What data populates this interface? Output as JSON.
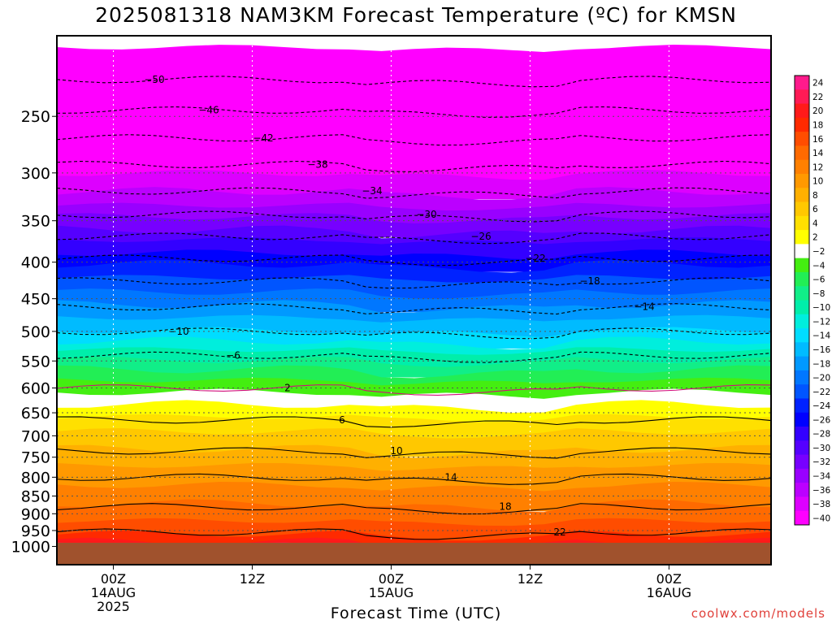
{
  "chart_data": {
    "type": "heatmap",
    "title": "2025081318 NAM3KM Forecast Temperature (ºC) for KMSN",
    "xlabel": "Forecast Time (UTC)",
    "ylabel": "",
    "y_levels": [
      250,
      300,
      350,
      400,
      450,
      500,
      550,
      600,
      650,
      700,
      750,
      800,
      850,
      900,
      950,
      1000
    ],
    "y_scale": "log",
    "ylim": [
      1000,
      200
    ],
    "x_ticks": [
      {
        "hour": 0,
        "lines": [
          "00Z",
          "14AUG",
          "2025"
        ]
      },
      {
        "hour": 12,
        "lines": [
          "12Z"
        ]
      },
      {
        "hour": 24,
        "lines": [
          "00Z",
          "15AUG"
        ]
      },
      {
        "hour": 36,
        "lines": [
          "12Z"
        ]
      },
      {
        "hour": 48,
        "lines": [
          "00Z",
          "16AUG"
        ]
      }
    ],
    "x_range_hours": [
      -6,
      54
    ],
    "colorbar": {
      "levels": [
        24,
        22,
        20,
        18,
        16,
        14,
        12,
        10,
        8,
        6,
        4,
        2,
        -2,
        -4,
        -6,
        -8,
        -10,
        -12,
        -14,
        -16,
        -18,
        -20,
        -22,
        -24,
        -26,
        -28,
        -30,
        -32,
        -34,
        -36,
        -38,
        -40
      ],
      "labels": [
        "24",
        "22",
        "20",
        "18",
        "16",
        "14",
        "12",
        "10",
        "8",
        "6",
        "4",
        "2",
        "−2",
        "−4",
        "−6",
        "−8",
        "−10",
        "−12",
        "−14",
        "−16",
        "−18",
        "−20",
        "−22",
        "−24",
        "−26",
        "−28",
        "−30",
        "−32",
        "−34",
        "−36",
        "−38",
        "−40"
      ],
      "colors": [
        "#ff1a8c",
        "#ff1a55",
        "#ff1a1a",
        "#ff2a00",
        "#ff4d00",
        "#ff6a00",
        "#ff8000",
        "#ff9900",
        "#ffb000",
        "#ffc800",
        "#ffe000",
        "#ffff00",
        "#ffffff",
        "#44ee11",
        "#22ee55",
        "#11ee88",
        "#00eeaa",
        "#00eedd",
        "#00ddff",
        "#00bbff",
        "#0099ff",
        "#0077ff",
        "#0055ff",
        "#0022ff",
        "#0000ff",
        "#3300ff",
        "#5500ff",
        "#7700ff",
        "#9900ff",
        "#bb00ff",
        "#dd00ff",
        "#ff00ff"
      ]
    },
    "contour_labels": [
      "−50",
      "−46",
      "−42",
      "−38",
      "−34",
      "−30",
      "−26",
      "−22",
      "−18",
      "−14",
      "−10",
      "−6",
      "2",
      "6",
      "10",
      "14",
      "18",
      "22"
    ],
    "ground_color": "#a0522d",
    "grid": true
  },
  "credit": "coolwx.com/models"
}
